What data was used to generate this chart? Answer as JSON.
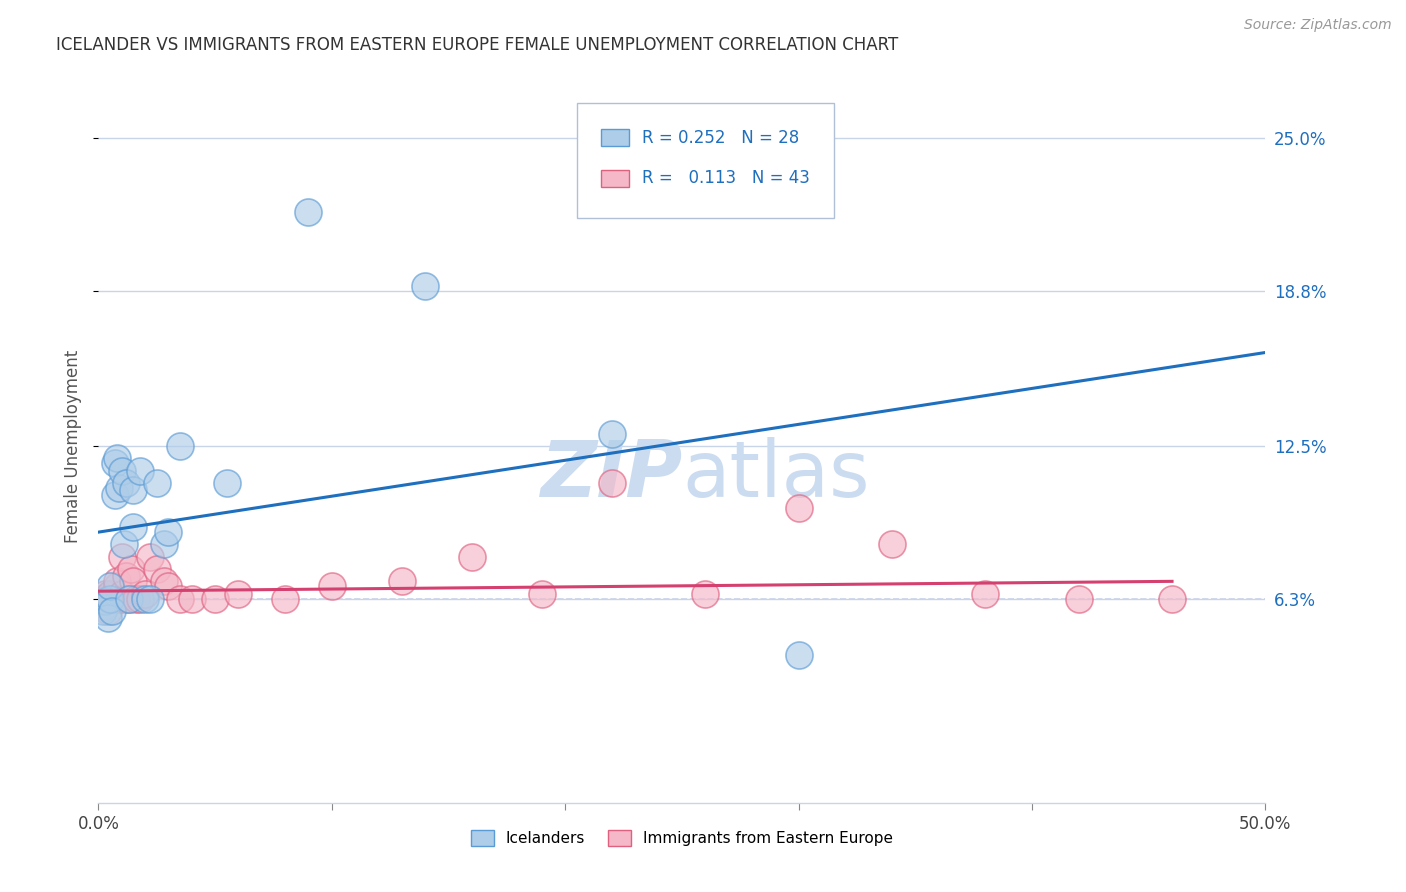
{
  "title": "ICELANDER VS IMMIGRANTS FROM EASTERN EUROPE FEMALE UNEMPLOYMENT CORRELATION CHART",
  "source": "Source: ZipAtlas.com",
  "ylabel": "Female Unemployment",
  "ytick_labels": [
    "25.0%",
    "18.8%",
    "12.5%",
    "6.3%"
  ],
  "ytick_values": [
    0.25,
    0.188,
    0.125,
    0.063
  ],
  "xmin": 0.0,
  "xmax": 0.5,
  "ymin": -0.02,
  "ymax": 0.27,
  "dashed_line_y": 0.063,
  "blue_R": 0.252,
  "blue_N": 28,
  "pink_R": 0.113,
  "pink_N": 43,
  "blue_color": "#aecde8",
  "blue_edge": "#5b9bd5",
  "pink_color": "#f4b8c8",
  "pink_edge": "#e06080",
  "blue_line_color": "#1f6fbf",
  "pink_line_color": "#d44070",
  "background_color": "#ffffff",
  "grid_color": "#c8d4e8",
  "watermark_color": "#ccdcf0",
  "blue_scatter_x": [
    0.002,
    0.003,
    0.004,
    0.005,
    0.005,
    0.006,
    0.007,
    0.007,
    0.008,
    0.009,
    0.01,
    0.011,
    0.012,
    0.013,
    0.015,
    0.015,
    0.018,
    0.02,
    0.022,
    0.025,
    0.028,
    0.03,
    0.035,
    0.055,
    0.09,
    0.14,
    0.22,
    0.3
  ],
  "blue_scatter_y": [
    0.058,
    0.062,
    0.055,
    0.063,
    0.068,
    0.058,
    0.118,
    0.105,
    0.12,
    0.108,
    0.115,
    0.085,
    0.11,
    0.063,
    0.092,
    0.107,
    0.115,
    0.063,
    0.063,
    0.11,
    0.085,
    0.09,
    0.125,
    0.11,
    0.22,
    0.19,
    0.13,
    0.04
  ],
  "pink_scatter_x": [
    0.001,
    0.002,
    0.003,
    0.003,
    0.004,
    0.004,
    0.005,
    0.005,
    0.006,
    0.007,
    0.008,
    0.008,
    0.009,
    0.01,
    0.01,
    0.011,
    0.012,
    0.013,
    0.014,
    0.015,
    0.016,
    0.018,
    0.02,
    0.022,
    0.025,
    0.028,
    0.03,
    0.035,
    0.04,
    0.05,
    0.06,
    0.08,
    0.1,
    0.13,
    0.16,
    0.19,
    0.22,
    0.26,
    0.3,
    0.34,
    0.38,
    0.42,
    0.46
  ],
  "pink_scatter_y": [
    0.063,
    0.063,
    0.06,
    0.065,
    0.063,
    0.058,
    0.063,
    0.065,
    0.063,
    0.063,
    0.068,
    0.07,
    0.063,
    0.08,
    0.065,
    0.063,
    0.072,
    0.063,
    0.075,
    0.07,
    0.063,
    0.063,
    0.065,
    0.08,
    0.075,
    0.07,
    0.068,
    0.063,
    0.063,
    0.063,
    0.065,
    0.063,
    0.068,
    0.07,
    0.08,
    0.065,
    0.11,
    0.065,
    0.1,
    0.085,
    0.065,
    0.063,
    0.063
  ],
  "blue_line_x0": 0.0,
  "blue_line_x1": 0.5,
  "blue_line_y0": 0.09,
  "blue_line_y1": 0.163,
  "pink_line_x0": 0.0,
  "pink_line_x1": 0.46,
  "pink_line_y0": 0.066,
  "pink_line_y1": 0.07
}
